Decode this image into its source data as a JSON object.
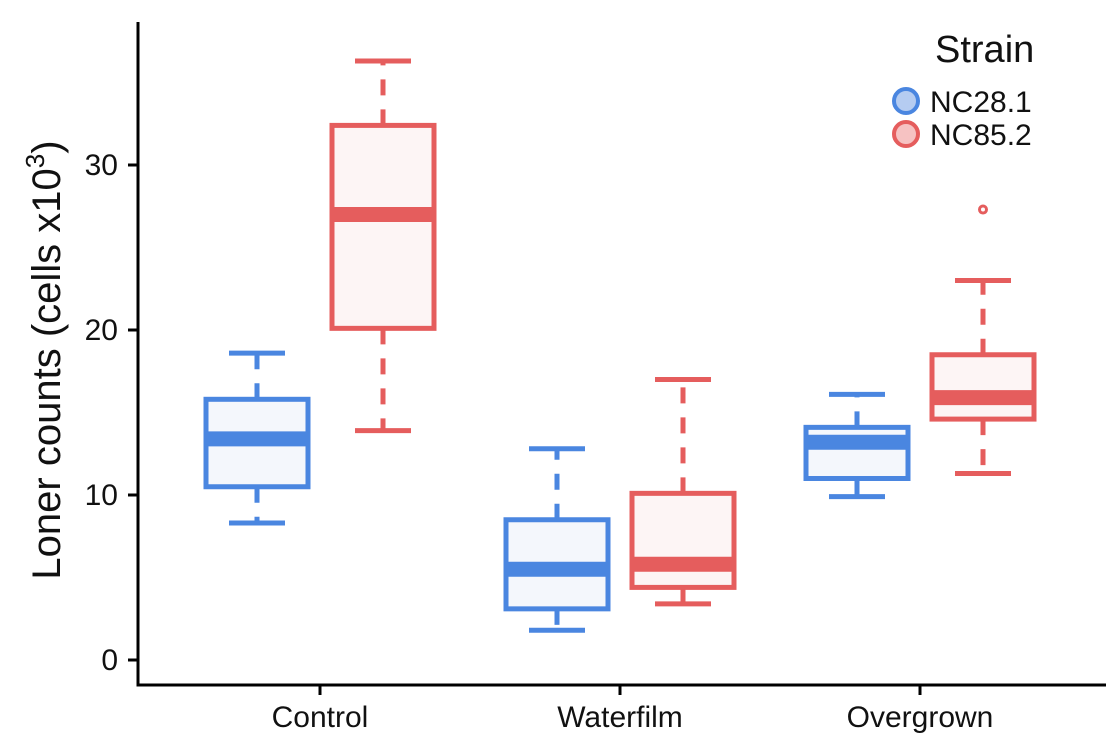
{
  "chart_data": {
    "type": "boxplot",
    "title": "",
    "xlabel": "",
    "ylabel": "Loner counts (cells x10",
    "ylabel_superscript": "3",
    "ylabel_suffix": ")",
    "ylim": [
      -0.8,
      38.5
    ],
    "yticks": [
      0,
      10,
      20,
      30
    ],
    "grid": false,
    "legend_position": "top-right",
    "legend_title": "Strain",
    "categories": [
      "Control",
      "Waterfilm",
      "Overgrown"
    ],
    "series": [
      {
        "name": "NC28.1",
        "color": "#4a86e0",
        "fill": "#f4f7fc",
        "legend_fill": "#b5ccf1",
        "boxes": [
          {
            "category": "Control",
            "whisker_low": 8.3,
            "q1": 10.5,
            "median": 13.4,
            "q3": 15.8,
            "whisker_high": 18.6,
            "outliers": []
          },
          {
            "category": "Waterfilm",
            "whisker_low": 1.8,
            "q1": 3.1,
            "median": 5.5,
            "q3": 8.5,
            "whisker_high": 12.8,
            "outliers": []
          },
          {
            "category": "Overgrown",
            "whisker_low": 9.9,
            "q1": 11.0,
            "median": 13.2,
            "q3": 14.1,
            "whisker_high": 16.1,
            "outliers": []
          }
        ]
      },
      {
        "name": "NC85.2",
        "color": "#e55d5d",
        "fill": "#fdf5f5",
        "legend_fill": "#f6c2c2",
        "boxes": [
          {
            "category": "Control",
            "whisker_low": 13.9,
            "q1": 20.1,
            "median": 27.0,
            "q3": 32.4,
            "whisker_high": 36.3,
            "outliers": []
          },
          {
            "category": "Waterfilm",
            "whisker_low": 3.4,
            "q1": 4.4,
            "median": 5.8,
            "q3": 10.1,
            "whisker_high": 17.0,
            "outliers": []
          },
          {
            "category": "Overgrown",
            "whisker_low": 11.3,
            "q1": 14.6,
            "median": 15.9,
            "q3": 18.5,
            "whisker_high": 23.0,
            "outliers": [
              27.3
            ]
          }
        ]
      }
    ]
  }
}
